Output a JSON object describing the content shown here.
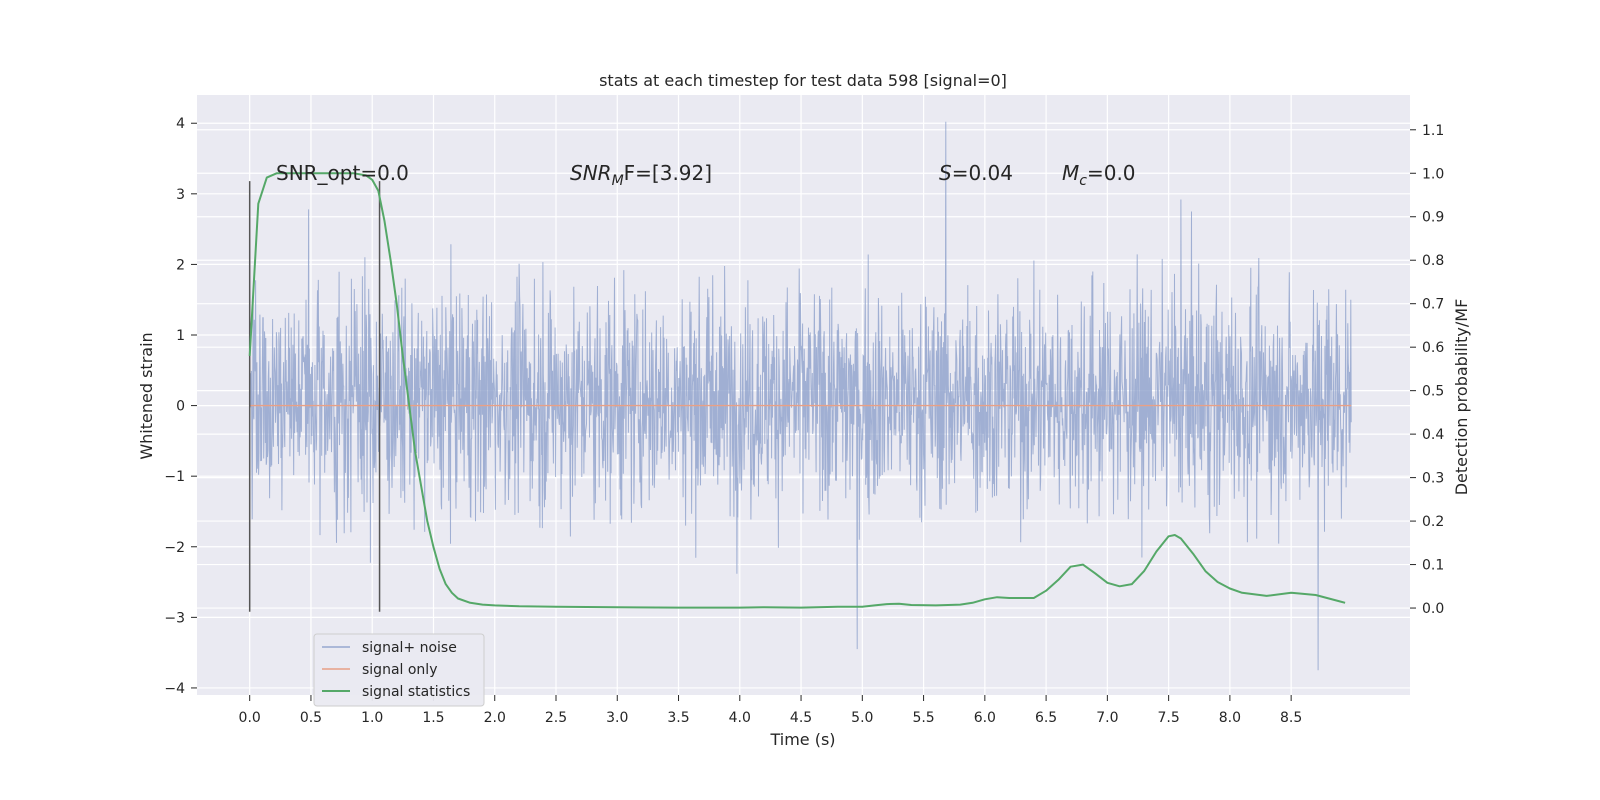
{
  "chart_data": {
    "type": "line",
    "title": "stats at each timestep for test data 598 [signal=0]",
    "xlabel": "Time (s)",
    "ylabel": "Whitened strain",
    "ylabel_right": "Detection probability/MF",
    "xlim": [
      -0.43,
      9.47
    ],
    "ylim": [
      -4.1,
      4.4
    ],
    "ylim_right": [
      -0.2,
      1.18
    ],
    "x_ticks": [
      0.0,
      0.5,
      1.0,
      1.5,
      2.0,
      2.5,
      3.0,
      3.5,
      4.0,
      4.5,
      5.0,
      5.5,
      6.0,
      6.5,
      7.0,
      7.5,
      8.0,
      8.5
    ],
    "x_tick_labels": [
      "0.0",
      "0.5",
      "1.0",
      "1.5",
      "2.0",
      "2.5",
      "3.0",
      "3.5",
      "4.0",
      "4.5",
      "5.0",
      "5.5",
      "6.0",
      "6.5",
      "7.0",
      "7.5",
      "8.0",
      "8.5"
    ],
    "y_ticks": [
      -4,
      -3,
      -2,
      -1,
      0,
      1,
      2,
      3,
      4
    ],
    "y_tick_labels": [
      "−4",
      "−3",
      "−2",
      "−1",
      "0",
      "1",
      "2",
      "3",
      "4"
    ],
    "y_right_ticks": [
      0.0,
      0.1,
      0.2,
      0.3,
      0.4,
      0.5,
      0.6,
      0.7,
      0.8,
      0.9,
      1.0,
      1.1
    ],
    "y_right_tick_labels": [
      "0.0",
      "0.1",
      "0.2",
      "0.3",
      "0.4",
      "0.5",
      "0.6",
      "0.7",
      "0.8",
      "0.9",
      "1.0",
      "1.1"
    ],
    "grid": true,
    "legend_position": "bottom-left",
    "legend": [
      "signal+ noise",
      "signal only",
      "signal statistics"
    ],
    "annotations": {
      "snr_opt": "SNR_opt=0.0",
      "snr_mf_main": "SNR",
      "snr_mf_sub": "M",
      "snr_mf_rest": "F=[3.92]",
      "s_var": "S",
      "s_rest": "=0.04",
      "mc_var": "M",
      "mc_sub": "c",
      "mc_rest": "=0.0"
    },
    "noise": {
      "x_range": [
        0.0,
        8.99
      ],
      "amplitude_band": [
        -1.1,
        1.3
      ],
      "max_peak": 4.02,
      "min_peak": -3.75,
      "notable_peaks": [
        {
          "x": 5.68,
          "y": 4.02
        },
        {
          "x": 8.72,
          "y": -3.75
        },
        {
          "x": 4.96,
          "y": -3.45
        },
        {
          "x": 7.6,
          "y": 2.92
        },
        {
          "x": 0.48,
          "y": 2.78
        }
      ]
    },
    "signal_only": {
      "x_range": [
        0.0,
        8.99
      ],
      "value": 0.0
    },
    "window_markers": [
      {
        "x": 0.0,
        "y_range": [
          -2.92,
          3.18
        ]
      },
      {
        "x": 1.06,
        "y_range": [
          -2.92,
          3.18
        ]
      }
    ],
    "series": [
      {
        "name": "signal statistics",
        "axis": "right",
        "x": [
          0.0,
          0.07,
          0.14,
          0.22,
          0.35,
          0.6,
          0.85,
          0.95,
          1.0,
          1.05,
          1.1,
          1.15,
          1.2,
          1.25,
          1.3,
          1.35,
          1.4,
          1.45,
          1.5,
          1.55,
          1.6,
          1.65,
          1.7,
          1.8,
          1.9,
          2.0,
          2.2,
          2.5,
          3.0,
          3.5,
          4.0,
          4.2,
          4.5,
          4.8,
          5.0,
          5.1,
          5.2,
          5.3,
          5.4,
          5.6,
          5.8,
          5.9,
          6.0,
          6.1,
          6.2,
          6.4,
          6.5,
          6.6,
          6.7,
          6.8,
          6.9,
          7.0,
          7.1,
          7.2,
          7.3,
          7.4,
          7.5,
          7.55,
          7.6,
          7.7,
          7.8,
          7.9,
          8.0,
          8.1,
          8.3,
          8.5,
          8.7,
          8.9,
          8.94
        ],
        "values": [
          0.58,
          0.93,
          0.99,
          1.0,
          1.0,
          1.0,
          1.0,
          0.995,
          0.985,
          0.96,
          0.89,
          0.8,
          0.7,
          0.58,
          0.47,
          0.36,
          0.28,
          0.2,
          0.14,
          0.09,
          0.055,
          0.035,
          0.022,
          0.012,
          0.008,
          0.006,
          0.004,
          0.003,
          0.002,
          0.001,
          0.001,
          0.002,
          0.001,
          0.003,
          0.003,
          0.006,
          0.009,
          0.01,
          0.007,
          0.006,
          0.008,
          0.012,
          0.02,
          0.025,
          0.023,
          0.023,
          0.04,
          0.065,
          0.095,
          0.1,
          0.08,
          0.058,
          0.05,
          0.055,
          0.085,
          0.13,
          0.165,
          0.168,
          0.16,
          0.125,
          0.085,
          0.06,
          0.045,
          0.035,
          0.028,
          0.035,
          0.03,
          0.015,
          0.012
        ]
      }
    ]
  }
}
